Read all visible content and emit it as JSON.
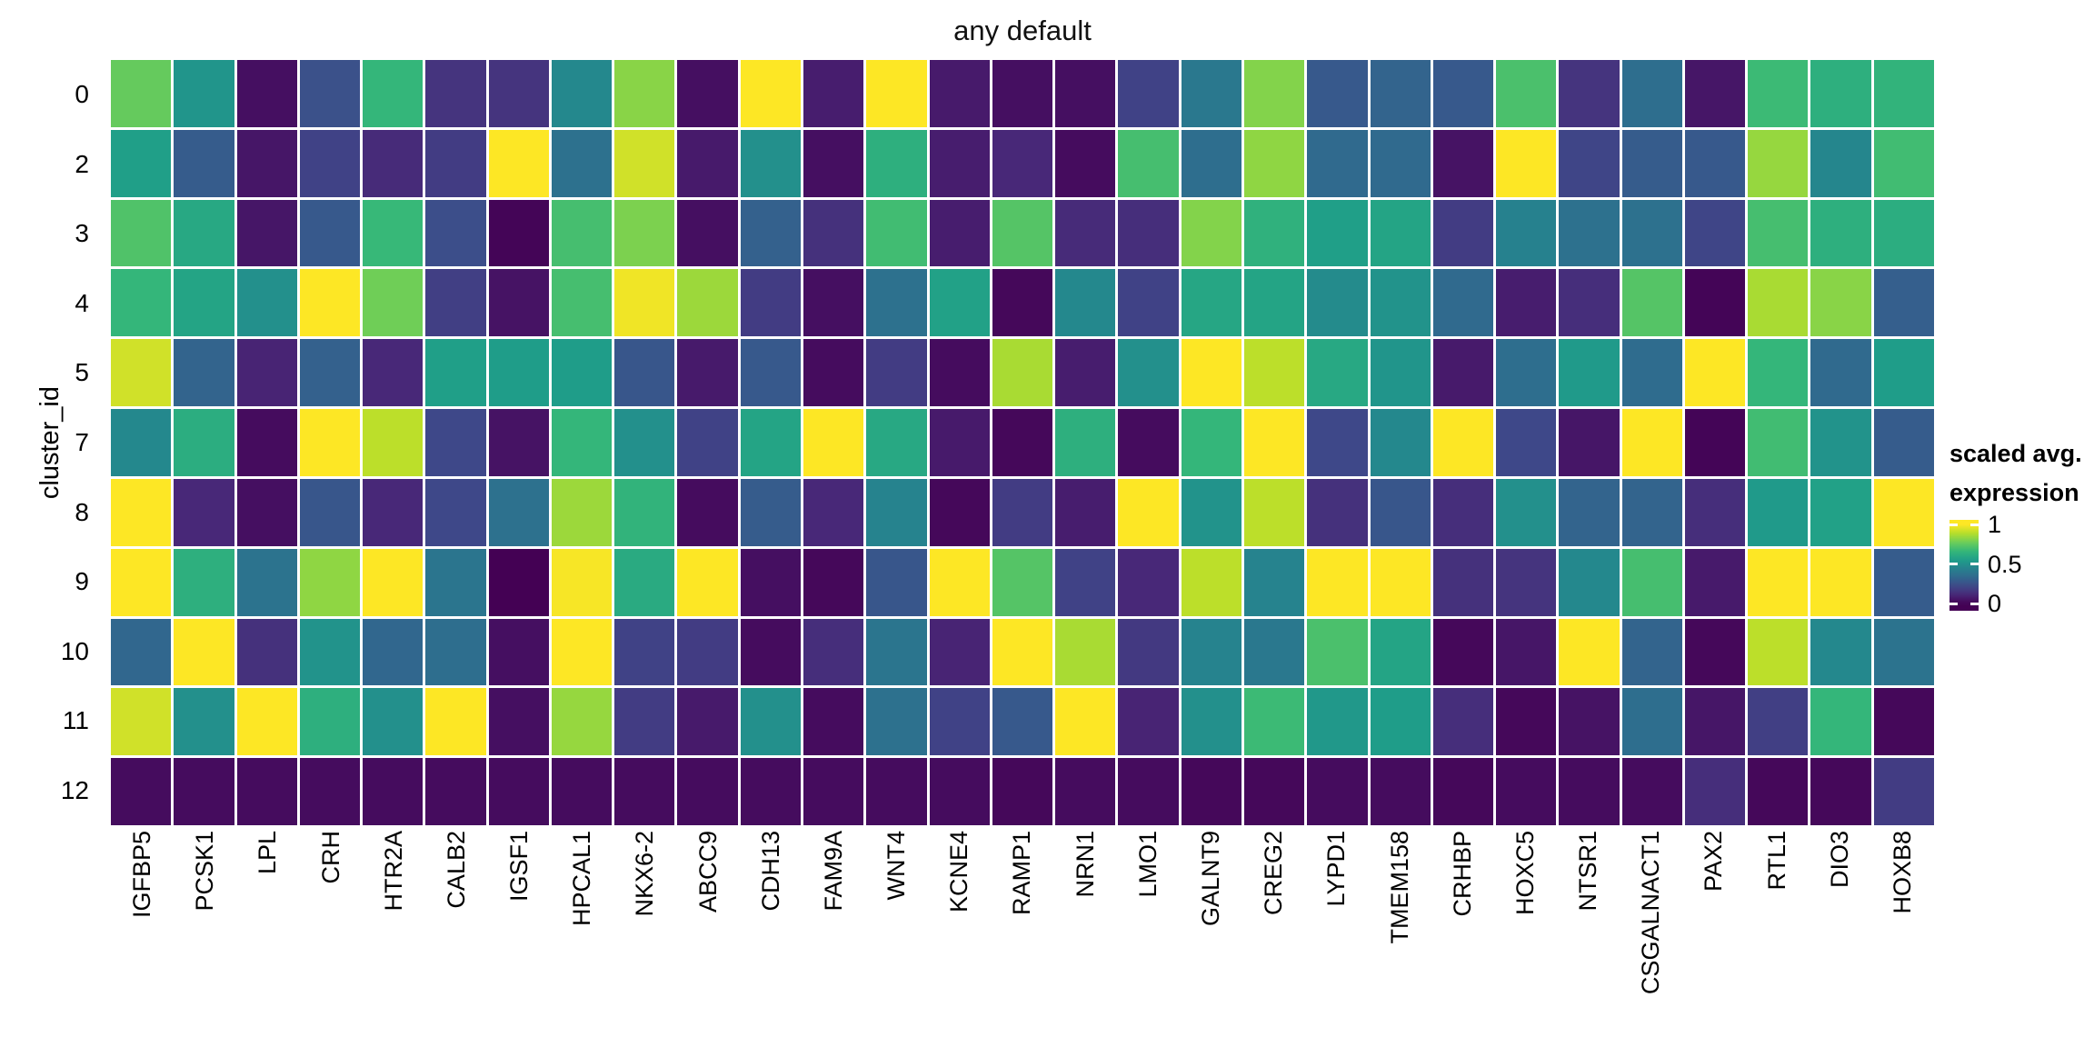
{
  "header": {
    "title": "any default"
  },
  "y_axis": {
    "label": "cluster_id",
    "ticks": [
      "0",
      "2",
      "3",
      "4",
      "5",
      "7",
      "8",
      "9",
      "10",
      "11",
      "12"
    ]
  },
  "legend": {
    "title_line1": "scaled avg.",
    "title_line2": "expression",
    "ticks": [
      {
        "label": "1",
        "value": 1
      },
      {
        "label": "0.5",
        "value": 0.5
      },
      {
        "label": "0",
        "value": 0
      }
    ]
  },
  "chart_data": {
    "type": "heatmap",
    "title": "any default",
    "ylabel": "cluster_id",
    "xlabel": "",
    "legend_title": "scaled avg. expression",
    "colormap": "viridis",
    "value_range": [
      0,
      1
    ],
    "colormap_stops": [
      "#440154",
      "#482878",
      "#3e4989",
      "#31688e",
      "#26828e",
      "#1f9e89",
      "#35b779",
      "#6ece58",
      "#b5de2b",
      "#fde725"
    ],
    "rows": [
      "0",
      "2",
      "3",
      "4",
      "5",
      "7",
      "8",
      "9",
      "10",
      "11",
      "12"
    ],
    "columns": [
      "IGFBP5",
      "PCSK1",
      "LPL",
      "CRH",
      "HTR2A",
      "CALB2",
      "IGSF1",
      "HPCAL1",
      "NKX6-2",
      "ABCC9",
      "CDH13",
      "FAM9A",
      "WNT4",
      "KCNE4",
      "RAMP1",
      "NRN1",
      "LMO1",
      "GALNT9",
      "CREG2",
      "LYPD1",
      "TMEM158",
      "CRHBP",
      "HOXC5",
      "NTSR1",
      "CSGALNACT1",
      "PAX2",
      "RTL1",
      "DIO3",
      "HOXB8"
    ],
    "values": [
      [
        0.76,
        0.52,
        0.04,
        0.25,
        0.66,
        0.15,
        0.15,
        0.47,
        0.82,
        0.04,
        1.0,
        0.08,
        1.0,
        0.07,
        0.04,
        0.04,
        0.2,
        0.4,
        0.81,
        0.28,
        0.32,
        0.28,
        0.71,
        0.15,
        0.36,
        0.06,
        0.68,
        0.63,
        0.65
      ],
      [
        0.56,
        0.29,
        0.06,
        0.2,
        0.12,
        0.18,
        1.0,
        0.37,
        0.93,
        0.07,
        0.5,
        0.04,
        0.63,
        0.08,
        0.11,
        0.03,
        0.7,
        0.36,
        0.83,
        0.34,
        0.34,
        0.05,
        1.0,
        0.21,
        0.29,
        0.28,
        0.84,
        0.46,
        0.69
      ],
      [
        0.72,
        0.6,
        0.06,
        0.28,
        0.67,
        0.24,
        0.01,
        0.7,
        0.8,
        0.04,
        0.31,
        0.14,
        0.69,
        0.08,
        0.73,
        0.12,
        0.13,
        0.81,
        0.64,
        0.56,
        0.58,
        0.18,
        0.44,
        0.37,
        0.37,
        0.21,
        0.7,
        0.63,
        0.62
      ],
      [
        0.66,
        0.58,
        0.5,
        1.0,
        0.78,
        0.19,
        0.05,
        0.7,
        0.98,
        0.85,
        0.18,
        0.04,
        0.37,
        0.57,
        0.02,
        0.47,
        0.2,
        0.59,
        0.58,
        0.48,
        0.51,
        0.34,
        0.08,
        0.13,
        0.73,
        0.01,
        0.87,
        0.82,
        0.3
      ],
      [
        0.93,
        0.32,
        0.1,
        0.31,
        0.11,
        0.56,
        0.55,
        0.55,
        0.27,
        0.07,
        0.28,
        0.03,
        0.18,
        0.03,
        0.87,
        0.08,
        0.5,
        1.0,
        0.9,
        0.6,
        0.52,
        0.07,
        0.36,
        0.54,
        0.35,
        1.0,
        0.66,
        0.34,
        0.55
      ],
      [
        0.47,
        0.62,
        0.03,
        1.0,
        0.9,
        0.22,
        0.05,
        0.66,
        0.5,
        0.2,
        0.58,
        1.0,
        0.6,
        0.07,
        0.02,
        0.63,
        0.03,
        0.66,
        1.0,
        0.22,
        0.47,
        1.0,
        0.22,
        0.06,
        1.0,
        0.01,
        0.69,
        0.51,
        0.29
      ],
      [
        1.0,
        0.11,
        0.04,
        0.27,
        0.11,
        0.22,
        0.37,
        0.85,
        0.65,
        0.03,
        0.29,
        0.11,
        0.45,
        0.02,
        0.18,
        0.08,
        1.0,
        0.51,
        0.9,
        0.14,
        0.27,
        0.13,
        0.5,
        0.32,
        0.32,
        0.13,
        0.54,
        0.57,
        1.0
      ],
      [
        1.0,
        0.63,
        0.38,
        0.83,
        1.0,
        0.39,
        0.0,
        0.99,
        0.61,
        1.0,
        0.04,
        0.02,
        0.27,
        1.0,
        0.73,
        0.2,
        0.11,
        0.9,
        0.45,
        1.0,
        1.0,
        0.14,
        0.15,
        0.47,
        0.7,
        0.07,
        1.0,
        1.0,
        0.29
      ],
      [
        0.33,
        1.0,
        0.14,
        0.51,
        0.33,
        0.36,
        0.04,
        1.0,
        0.2,
        0.18,
        0.03,
        0.13,
        0.39,
        0.1,
        1.0,
        0.87,
        0.17,
        0.45,
        0.4,
        0.71,
        0.58,
        0.02,
        0.06,
        1.0,
        0.32,
        0.02,
        0.9,
        0.47,
        0.38
      ],
      [
        0.93,
        0.5,
        1.0,
        0.63,
        0.5,
        1.0,
        0.04,
        0.84,
        0.18,
        0.07,
        0.5,
        0.03,
        0.37,
        0.2,
        0.28,
        1.0,
        0.1,
        0.5,
        0.68,
        0.53,
        0.55,
        0.13,
        0.02,
        0.05,
        0.36,
        0.06,
        0.19,
        0.66,
        0.02
      ],
      [
        0.03,
        0.03,
        0.03,
        0.03,
        0.03,
        0.03,
        0.03,
        0.03,
        0.03,
        0.03,
        0.03,
        0.03,
        0.03,
        0.03,
        0.02,
        0.03,
        0.03,
        0.02,
        0.02,
        0.03,
        0.03,
        0.02,
        0.03,
        0.03,
        0.03,
        0.13,
        0.02,
        0.02,
        0.18
      ]
    ],
    "legend_bar": {
      "top_value": 1.06,
      "bottom_value": -0.09
    }
  }
}
